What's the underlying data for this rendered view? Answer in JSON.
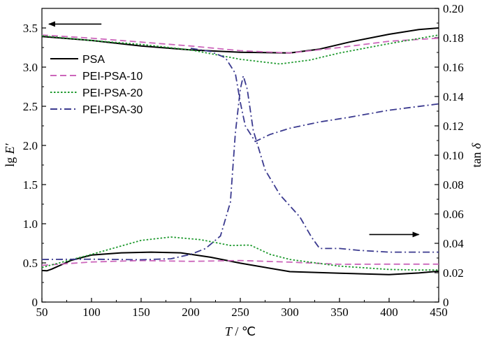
{
  "chart_data": {
    "type": "line",
    "x": {
      "label_var": "T",
      "label_unit": "℃",
      "range": [
        50,
        450
      ],
      "ticks": [
        "50",
        "100",
        "150",
        "200",
        "250",
        "300",
        "350",
        "400",
        "450"
      ]
    },
    "y_left": {
      "label_main": "lg ",
      "label_var": "E′",
      "range": [
        0,
        3.75
      ],
      "ticks": [
        "0",
        "0.5",
        "1.0",
        "1.5",
        "2.0",
        "2.5",
        "3.0",
        "3.5"
      ]
    },
    "y_right": {
      "label_main": "tan ",
      "label_var": "δ",
      "range": [
        0,
        0.2
      ],
      "ticks": [
        "0",
        "0.02",
        "0.04",
        "0.06",
        "0.08",
        "0.10",
        "0.12",
        "0.14",
        "0.16",
        "0.18",
        "0.20"
      ]
    },
    "grid": false,
    "legend_position": "top-left",
    "series": [
      {
        "name": "PSA",
        "color": "#000000",
        "dash": "solid",
        "modulus": [
          [
            50,
            3.39
          ],
          [
            100,
            3.34
          ],
          [
            150,
            3.27
          ],
          [
            200,
            3.22
          ],
          [
            250,
            3.19
          ],
          [
            300,
            3.18
          ],
          [
            330,
            3.23
          ],
          [
            360,
            3.32
          ],
          [
            400,
            3.42
          ],
          [
            430,
            3.48
          ],
          [
            450,
            3.5
          ]
        ],
        "tan_delta": [
          [
            50,
            0.0215
          ],
          [
            55,
            0.0213
          ],
          [
            60,
            0.0225
          ],
          [
            80,
            0.0285
          ],
          [
            100,
            0.032
          ],
          [
            130,
            0.0335
          ],
          [
            160,
            0.034
          ],
          [
            190,
            0.0335
          ],
          [
            220,
            0.0305
          ],
          [
            250,
            0.0265
          ],
          [
            300,
            0.0207
          ],
          [
            350,
            0.0196
          ],
          [
            400,
            0.0187
          ],
          [
            430,
            0.0198
          ],
          [
            450,
            0.021
          ]
        ]
      },
      {
        "name": "PEI-PSA-10",
        "color": "#cc66bb",
        "dash": "dashed",
        "modulus": [
          [
            50,
            3.41
          ],
          [
            100,
            3.37
          ],
          [
            150,
            3.32
          ],
          [
            200,
            3.27
          ],
          [
            250,
            3.21
          ],
          [
            300,
            3.18
          ],
          [
            350,
            3.25
          ],
          [
            400,
            3.33
          ],
          [
            450,
            3.37
          ]
        ],
        "tan_delta": [
          [
            50,
            0.025
          ],
          [
            100,
            0.0273
          ],
          [
            150,
            0.0283
          ],
          [
            200,
            0.0277
          ],
          [
            250,
            0.0283
          ],
          [
            300,
            0.0272
          ],
          [
            350,
            0.0257
          ],
          [
            400,
            0.0258
          ],
          [
            450,
            0.0258
          ]
        ]
      },
      {
        "name": "PEI-PSA-20",
        "color": "#1f9a2f",
        "dash": "dotted",
        "modulus": [
          [
            50,
            3.4
          ],
          [
            100,
            3.34
          ],
          [
            150,
            3.29
          ],
          [
            200,
            3.22
          ],
          [
            250,
            3.1
          ],
          [
            290,
            3.04
          ],
          [
            320,
            3.09
          ],
          [
            350,
            3.18
          ],
          [
            400,
            3.3
          ],
          [
            450,
            3.41
          ]
        ],
        "tan_delta": [
          [
            50,
            0.0235
          ],
          [
            100,
            0.0325
          ],
          [
            150,
            0.042
          ],
          [
            180,
            0.0443
          ],
          [
            210,
            0.0425
          ],
          [
            240,
            0.0385
          ],
          [
            260,
            0.0388
          ],
          [
            280,
            0.0325
          ],
          [
            300,
            0.029
          ],
          [
            350,
            0.0245
          ],
          [
            400,
            0.0222
          ],
          [
            430,
            0.0218
          ],
          [
            450,
            0.0218
          ]
        ]
      },
      {
        "name": "PEI-PSA-30",
        "color": "#3b3a8f",
        "dash": "dash-dot",
        "modulus": [
          [
            200,
            3.24
          ],
          [
            220,
            3.2
          ],
          [
            235,
            3.12
          ],
          [
            245,
            2.92
          ],
          [
            250,
            2.55
          ],
          [
            255,
            2.25
          ],
          [
            265,
            2.05
          ],
          [
            280,
            2.14
          ],
          [
            300,
            2.22
          ],
          [
            330,
            2.3
          ],
          [
            360,
            2.36
          ],
          [
            400,
            2.45
          ],
          [
            450,
            2.53
          ]
        ],
        "tan_delta": [
          [
            50,
            0.029
          ],
          [
            100,
            0.0292
          ],
          [
            150,
            0.0288
          ],
          [
            180,
            0.0295
          ],
          [
            200,
            0.0325
          ],
          [
            215,
            0.0365
          ],
          [
            230,
            0.045
          ],
          [
            240,
            0.068
          ],
          [
            245,
            0.115
          ],
          [
            250,
            0.145
          ],
          [
            253,
            0.154
          ],
          [
            257,
            0.145
          ],
          [
            263,
            0.117
          ],
          [
            275,
            0.09
          ],
          [
            290,
            0.073
          ],
          [
            310,
            0.058
          ],
          [
            322,
            0.044
          ],
          [
            330,
            0.0365
          ],
          [
            350,
            0.0365
          ],
          [
            370,
            0.0352
          ],
          [
            400,
            0.034
          ],
          [
            430,
            0.034
          ],
          [
            450,
            0.034
          ]
        ]
      }
    ],
    "annotations": [
      {
        "label": "left-arrow",
        "points_to": "y_left",
        "at": [
          [
            57,
            3.55
          ],
          [
            110,
            3.55
          ]
        ]
      },
      {
        "label": "right-arrow",
        "points_to": "y_right",
        "at": [
          [
            380,
            0.046
          ],
          [
            430,
            0.046
          ]
        ]
      }
    ]
  }
}
